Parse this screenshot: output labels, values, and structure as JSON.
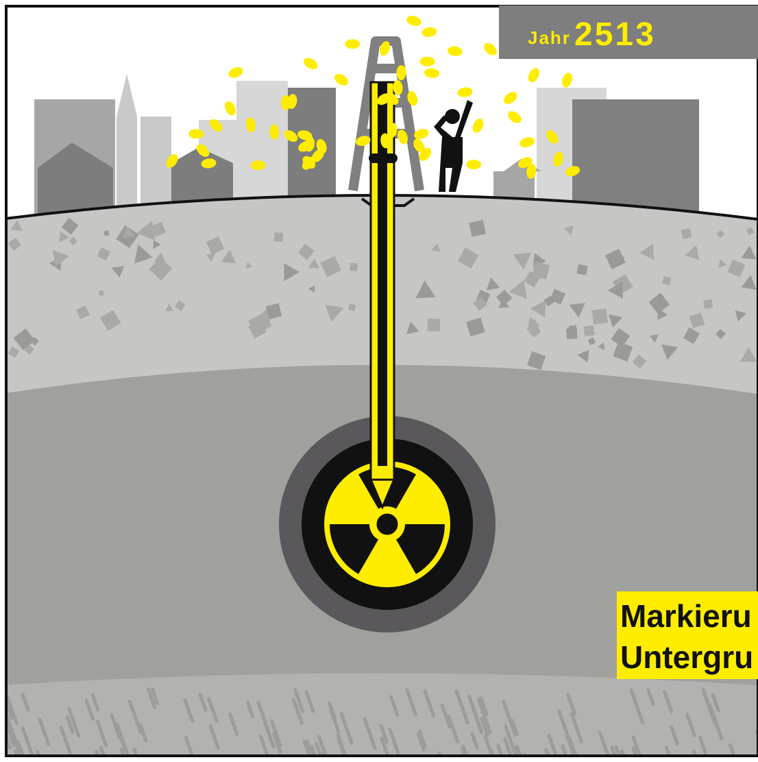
{
  "badge": {
    "label": "Jahr",
    "year": "2513"
  },
  "caption": {
    "lines": [
      "Markieru",
      "Untergru"
    ]
  }
}
